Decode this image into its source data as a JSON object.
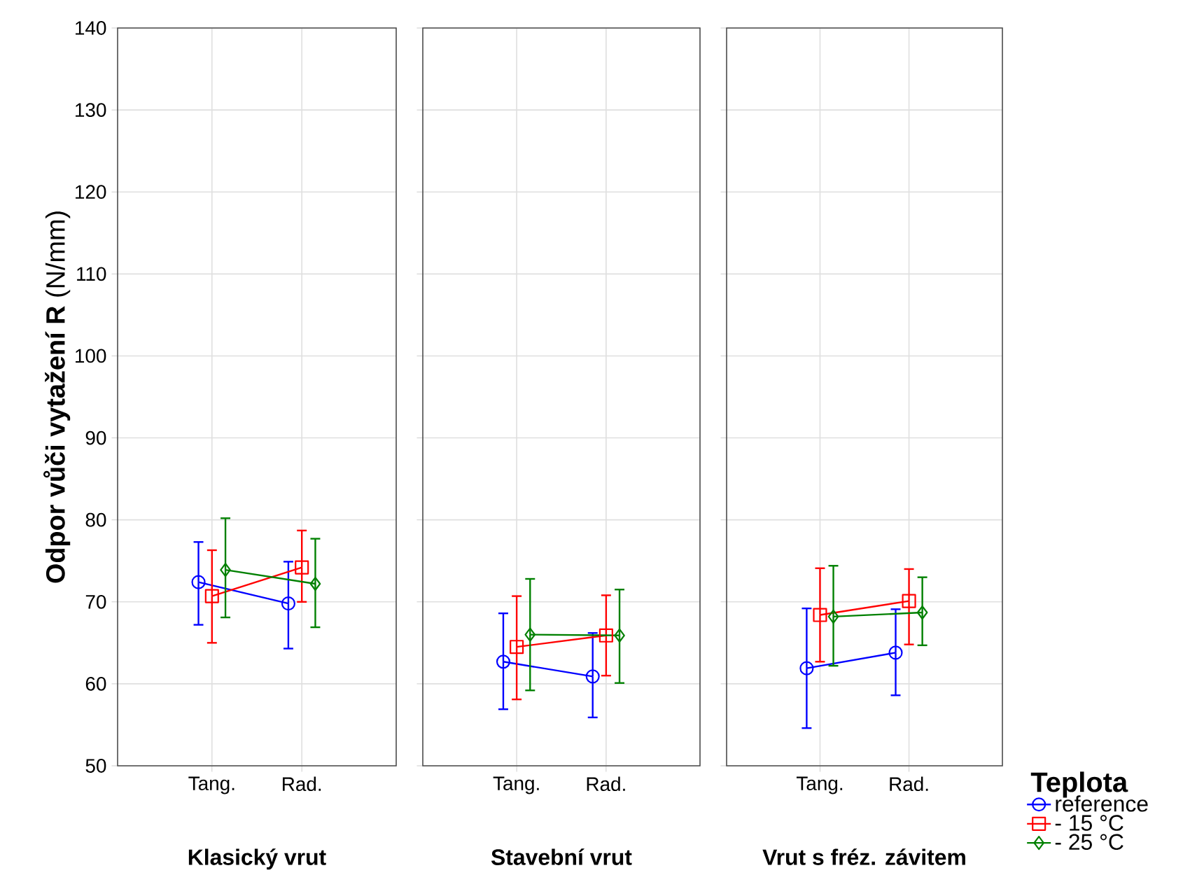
{
  "chart_data": [
    {
      "type": "line",
      "categories": [
        "Tang.",
        "Rad."
      ],
      "xlabel": "Klasický vrut",
      "ylabel": "**Odpor vůči vytažení R** (N/mm)",
      "ylim": [
        50,
        140
      ],
      "yticks": [
        50,
        60,
        70,
        80,
        90,
        100,
        110,
        120,
        130,
        140
      ],
      "grid": true,
      "series": [
        {
          "color": "#0000ff",
          "marker": "circle",
          "values": [
            72.4,
            69.8
          ],
          "errors": [
            [
              67.2,
              77.3
            ],
            [
              64.3,
              74.9
            ]
          ]
        },
        {
          "color": "#ff0000",
          "marker": "square",
          "values": [
            70.7,
            74.2
          ],
          "errors": [
            [
              65.0,
              76.3
            ],
            [
              70.0,
              78.7
            ]
          ]
        },
        {
          "color": "#008000",
          "marker": "diamond",
          "values": [
            73.9,
            72.2
          ],
          "errors": [
            [
              68.1,
              80.2
            ],
            [
              66.9,
              77.7
            ]
          ]
        }
      ]
    },
    {
      "type": "line",
      "categories": [
        "Tang.",
        "Rad."
      ],
      "xlabel": "Stavební vrut",
      "ylim": [
        50,
        140
      ],
      "yticks": [
        50,
        60,
        70,
        80,
        90,
        100,
        110,
        120,
        130,
        140
      ],
      "grid": true,
      "tick_labels": "x",
      "series": [
        {
          "color": "#0000ff",
          "marker": "circle",
          "values": [
            62.7,
            60.9
          ],
          "errors": [
            [
              56.9,
              68.6
            ],
            [
              55.9,
              66.2
            ]
          ]
        },
        {
          "color": "#ff0000",
          "marker": "square",
          "values": [
            64.5,
            65.9
          ],
          "errors": [
            [
              58.1,
              70.7
            ],
            [
              61.0,
              70.8
            ]
          ]
        },
        {
          "color": "#008000",
          "marker": "diamond",
          "values": [
            66.0,
            65.9
          ],
          "errors": [
            [
              59.2,
              72.8
            ],
            [
              60.1,
              71.5
            ]
          ]
        }
      ]
    },
    {
      "type": "line",
      "categories": [
        "Tang.",
        "Rad."
      ],
      "xlabel": "Vrut s fréz. závitem",
      "ylim": [
        50,
        140
      ],
      "yticks": [
        50,
        60,
        70,
        80,
        90,
        100,
        110,
        120,
        130,
        140
      ],
      "grid": true,
      "tick_labels": "x",
      "legend": "bottom right",
      "legend_title": "Teplota",
      "series": [
        {
          "name": "reference",
          "color": "#0000ff",
          "marker": "circle",
          "values": [
            61.9,
            63.8
          ],
          "errors": [
            [
              54.6,
              69.2
            ],
            [
              58.6,
              69.1
            ]
          ]
        },
        {
          "name": "- 15 °C",
          "color": "#ff0000",
          "marker": "square",
          "values": [
            68.4,
            70.1
          ],
          "errors": [
            [
              62.7,
              74.1
            ],
            [
              64.8,
              74.0
            ]
          ]
        },
        {
          "name": "- 25 °C",
          "color": "#008000",
          "marker": "diamond",
          "values": [
            68.2,
            68.7
          ],
          "errors": [
            [
              62.2,
              74.4
            ],
            [
              64.7,
              73.0
            ]
          ]
        }
      ]
    }
  ]
}
